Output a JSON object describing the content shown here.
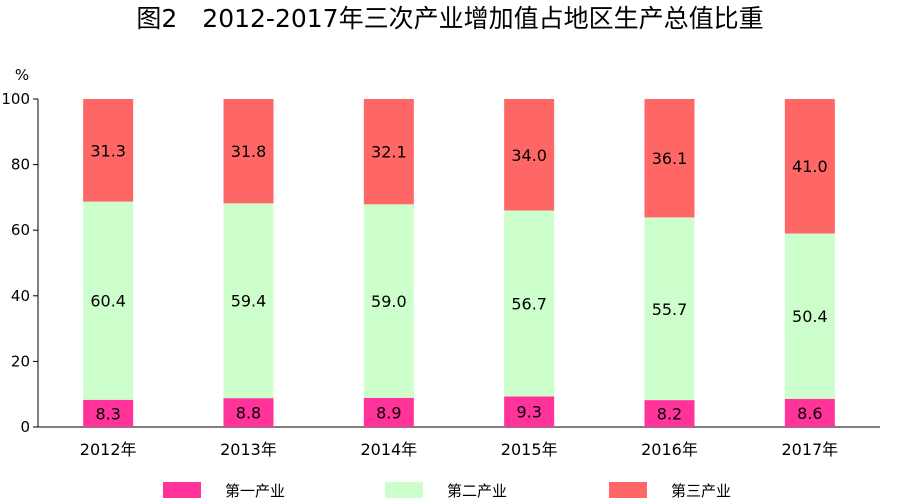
{
  "chart_data": {
    "type": "bar",
    "stacked": true,
    "title": "图2　2012-2017年三次产业增加值占地区生产总值比重",
    "ylabel": "%",
    "ylim": [
      0,
      100
    ],
    "yticks": [
      "0",
      "20",
      "40",
      "60",
      "80",
      "100"
    ],
    "categories": [
      "2012年",
      "2013年",
      "2014年",
      "2015年",
      "2016年",
      "2017年"
    ],
    "grid": false,
    "legend_position": "bottom",
    "series": [
      {
        "name": "第一产业",
        "color": "#ff3399",
        "values": [
          8.3,
          8.8,
          8.9,
          9.3,
          8.2,
          8.6
        ]
      },
      {
        "name": "第二产业",
        "color": "#ccffcc",
        "values": [
          60.4,
          59.4,
          59.0,
          56.7,
          55.7,
          50.4
        ]
      },
      {
        "name": "第三产业",
        "color": "#ff6666",
        "values": [
          31.3,
          31.8,
          32.1,
          34.0,
          36.1,
          41.0
        ]
      }
    ]
  }
}
